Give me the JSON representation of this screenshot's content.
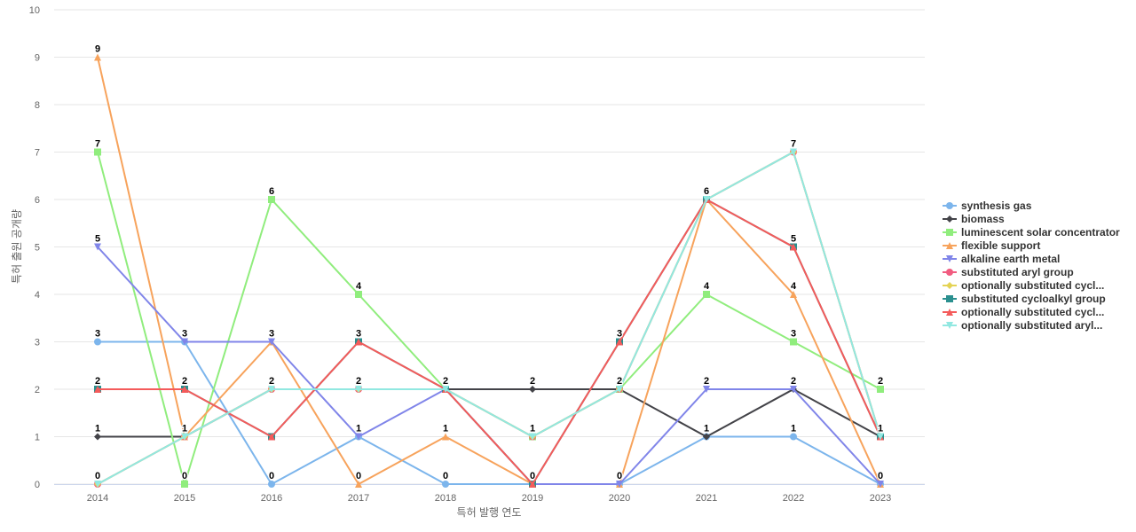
{
  "chart_data": {
    "type": "line",
    "xlabel": "특허 발행 연도",
    "ylabel": "특허 출원 공개량",
    "ylim": [
      0,
      10
    ],
    "yticks": [
      0,
      1,
      2,
      3,
      4,
      5,
      6,
      7,
      8,
      9,
      10
    ],
    "grid": true,
    "legend_position": "right",
    "categories": [
      "2014",
      "2015",
      "2016",
      "2017",
      "2018",
      "2019",
      "2020",
      "2021",
      "2022",
      "2023"
    ],
    "series": [
      {
        "name": "synthesis gas",
        "color": "#7cb5ec",
        "marker": "circle",
        "values": [
          3,
          3,
          0,
          1,
          0,
          0,
          0,
          1,
          1,
          0
        ]
      },
      {
        "name": "biomass",
        "color": "#434348",
        "marker": "diamond",
        "values": [
          1,
          1,
          2,
          2,
          2,
          2,
          2,
          1,
          2,
          1
        ]
      },
      {
        "name": "luminescent solar concentrator",
        "color": "#90ed7d",
        "marker": "square",
        "values": [
          7,
          0,
          6,
          4,
          2,
          1,
          2,
          4,
          3,
          2
        ]
      },
      {
        "name": "flexible support",
        "color": "#f7a35c",
        "marker": "triangle",
        "values": [
          9,
          1,
          3,
          0,
          1,
          0,
          0,
          6,
          4,
          0
        ]
      },
      {
        "name": "alkaline earth metal",
        "color": "#8085e9",
        "marker": "triangle-down",
        "values": [
          5,
          3,
          3,
          1,
          2,
          0,
          0,
          2,
          2,
          0
        ]
      },
      {
        "name": "substituted aryl group",
        "color": "#f15c80",
        "marker": "circle",
        "values": [
          0,
          1,
          2,
          2,
          2,
          1,
          2,
          6,
          7,
          1
        ]
      },
      {
        "name": "optionally substituted cycl...",
        "color": "#e4d354",
        "marker": "diamond",
        "values": [
          0,
          1,
          2,
          2,
          2,
          1,
          2,
          6,
          7,
          1
        ]
      },
      {
        "name": "substituted cycloalkyl group",
        "color": "#2b908f",
        "marker": "square",
        "values": [
          2,
          2,
          1,
          3,
          2,
          0,
          3,
          6,
          5,
          1
        ]
      },
      {
        "name": "optionally substituted cycl...",
        "color": "#f45b5b",
        "marker": "triangle",
        "values": [
          2,
          2,
          1,
          3,
          2,
          0,
          3,
          6,
          5,
          1
        ]
      },
      {
        "name": "optionally substituted aryl...",
        "color": "#91e8e1",
        "marker": "triangle-down",
        "values": [
          0,
          1,
          2,
          2,
          2,
          1,
          2,
          6,
          7,
          1
        ]
      }
    ],
    "data_labels": [
      {
        "x": "2014",
        "values": [
          9,
          7,
          5,
          3,
          2,
          1,
          0
        ]
      },
      {
        "x": "2015",
        "values": [
          3,
          2,
          1,
          0
        ]
      },
      {
        "x": "2016",
        "values": [
          6,
          3,
          2,
          0
        ]
      },
      {
        "x": "2017",
        "values": [
          4,
          3,
          2,
          1,
          0
        ]
      },
      {
        "x": "2018",
        "values": [
          2,
          1,
          0
        ]
      },
      {
        "x": "2019",
        "values": [
          2,
          1,
          0
        ]
      },
      {
        "x": "2020",
        "values": [
          3,
          2,
          0
        ]
      },
      {
        "x": "2021",
        "values": [
          6,
          4,
          2,
          1
        ]
      },
      {
        "x": "2022",
        "values": [
          7,
          5,
          4,
          3,
          2,
          1
        ]
      },
      {
        "x": "2023",
        "values": [
          2,
          1,
          0
        ]
      }
    ]
  }
}
